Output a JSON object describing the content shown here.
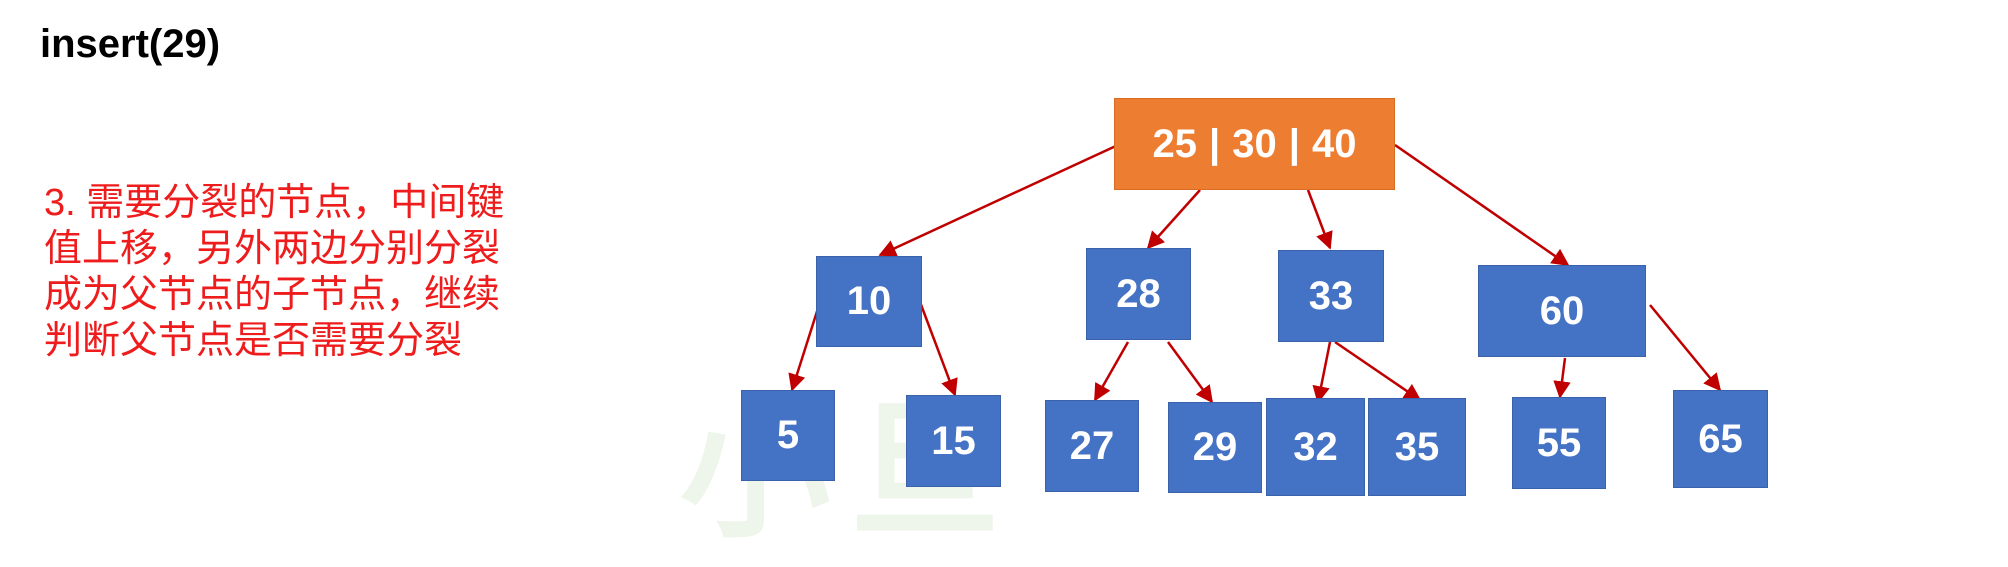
{
  "title": "insert(29)",
  "description_lines": [
    "3. 需要分裂的节点，中间键",
    "值上移，另外两边分别分裂",
    "成为父节点的子节点，继续",
    "判断父节点是否需要分裂"
  ],
  "colors": {
    "root_fill": "#ed7d31",
    "node_fill": "#4472c4",
    "edge": "#c00000",
    "text_red": "#ee1c1c"
  },
  "tree": {
    "root": {
      "keys": [
        "25",
        "30",
        "40"
      ],
      "separator": "|"
    },
    "level1": [
      "10",
      "28",
      "33",
      "60"
    ],
    "leaves": [
      "5",
      "15",
      "27",
      "29",
      "32",
      "35",
      "55",
      "65"
    ]
  }
}
